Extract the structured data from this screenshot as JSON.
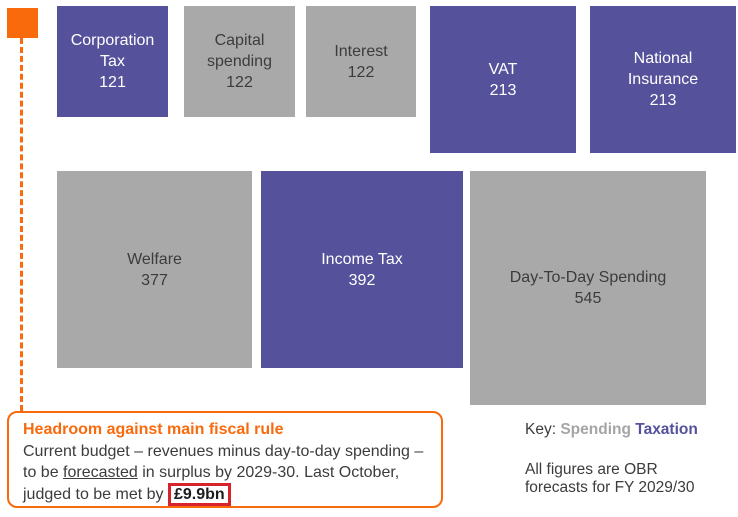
{
  "colors": {
    "taxation_purple": "#55519B",
    "spending_gray": "#A9A9A9",
    "accent_orange": "#F96A0D",
    "highlight_red": "#D7242C"
  },
  "chart_data": {
    "type": "proportional_area",
    "title": "",
    "legend_position": "bottom-right",
    "items": [
      {
        "label": "Corporation Tax",
        "value": 121,
        "category": "Taxation"
      },
      {
        "label": "Capital spending",
        "value": 122,
        "category": "Spending"
      },
      {
        "label": "Interest",
        "value": 122,
        "category": "Spending"
      },
      {
        "label": "VAT",
        "value": 213,
        "category": "Taxation"
      },
      {
        "label": "National Insurance",
        "value": 213,
        "category": "Taxation"
      },
      {
        "label": "Welfare",
        "value": 377,
        "category": "Spending"
      },
      {
        "label": "Income Tax",
        "value": 392,
        "category": "Taxation"
      },
      {
        "label": "Day-To-Day Spending",
        "value": 545,
        "category": "Spending"
      }
    ],
    "series": [
      {
        "name": "Taxation",
        "color": "#55519B",
        "values": [
          121,
          213,
          213,
          392
        ]
      },
      {
        "name": "Spending",
        "color": "#A9A9A9",
        "values": [
          122,
          122,
          377,
          545
        ]
      }
    ],
    "annotation": "All figures are OBR forecasts for FY 2029/30"
  },
  "callout": {
    "title": "Headroom against main fiscal rule",
    "body_part1": "Current budget – revenues minus day-to-day spending – to be ",
    "underlined_word": "forecasted",
    "body_part2": " in surplus by 2029-30. Last October, judged to be met by ",
    "highlighted_value": "£9.9bn"
  },
  "key": {
    "label": "Key:",
    "spending_label": "Spending",
    "taxation_label": "Taxation"
  },
  "footnote": "All figures are OBR forecasts for FY 2029/30"
}
